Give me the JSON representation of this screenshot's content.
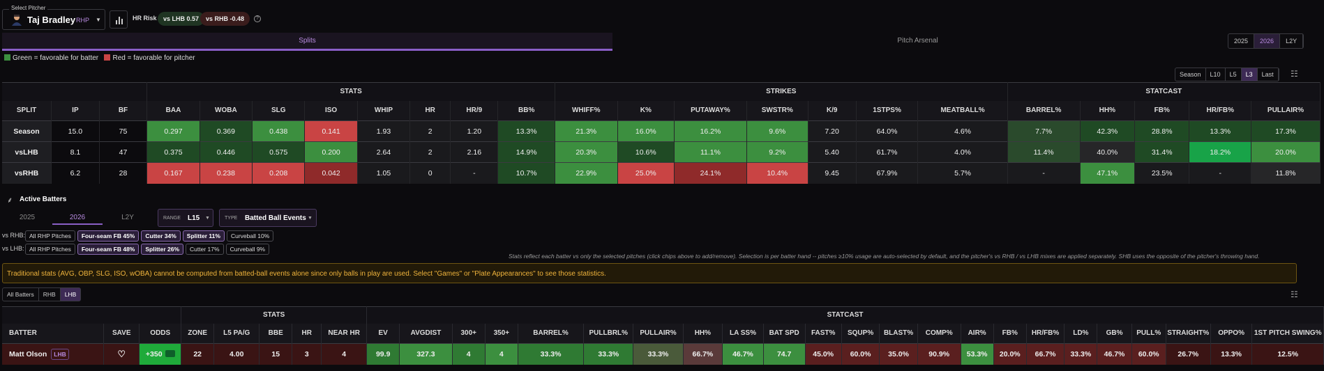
{
  "pitcher_select": {
    "label": "Select Pitcher",
    "name": "Taj Bradley",
    "hand": "RHP"
  },
  "hr_risk": {
    "label": "HR Risk",
    "vs_lhb": "vs LHB 0.57",
    "vs_rhb": "vs RHB -0.48"
  },
  "tabs": [
    "Splits",
    "Pitch Arsenal"
  ],
  "year_tabs": [
    "2025",
    "2026",
    "L2Y"
  ],
  "legend": {
    "green": "Green = favorable for batter",
    "red": "Red = favorable for pitcher"
  },
  "range_buttons": [
    "Season",
    "L10",
    "L5",
    "L3",
    "Last"
  ],
  "colors": {
    "accent": "#8a5fc7",
    "green": "#3c8f3f",
    "red": "#c94444"
  },
  "splits": {
    "groups": [
      "STATS",
      "STRIKES",
      "STATCAST"
    ],
    "columns": [
      "SPLIT",
      "IP",
      "BF",
      "BAA",
      "WOBA",
      "SLG",
      "ISO",
      "WHIP",
      "HR",
      "HR/9",
      "BB%",
      "WHIFF%",
      "K%",
      "PUTAWAY%",
      "SWSTR%",
      "K/9",
      "1STPS%",
      "MEATBALL%",
      "BARREL%",
      "HH%",
      "FB%",
      "HR/FB%",
      "PULLAIR%"
    ],
    "rows": [
      [
        "Season",
        "15.0",
        "75",
        "0.297",
        "0.369",
        "0.438",
        "0.141",
        "1.93",
        "2",
        "1.20",
        "13.3%",
        "21.3%",
        "16.0%",
        "16.2%",
        "9.6%",
        "7.20",
        "64.0%",
        "4.6%",
        "7.7%",
        "42.3%",
        "28.8%",
        "13.3%",
        "17.3%"
      ],
      [
        "vsLHB",
        "8.1",
        "47",
        "0.375",
        "0.446",
        "0.575",
        "0.200",
        "2.64",
        "2",
        "2.16",
        "14.9%",
        "20.3%",
        "10.6%",
        "11.1%",
        "9.2%",
        "5.40",
        "61.7%",
        "4.0%",
        "11.4%",
        "40.0%",
        "31.4%",
        "18.2%",
        "20.0%"
      ],
      [
        "vsRHB",
        "6.2",
        "28",
        "0.167",
        "0.238",
        "0.208",
        "0.042",
        "1.05",
        "0",
        "-",
        "10.7%",
        "22.9%",
        "25.0%",
        "24.1%",
        "10.4%",
        "9.45",
        "67.9%",
        "5.7%",
        "-",
        "47.1%",
        "23.5%",
        "-",
        "11.8%"
      ]
    ]
  },
  "active_batters": {
    "title": "Active Batters",
    "years": [
      "2025",
      "2026",
      "L2Y"
    ],
    "range_label": "RANGE",
    "range_value": "L15",
    "type_label": "TYPE",
    "type_value": "Batted Ball Events",
    "vs_rhb_label": "vs RHB:",
    "vs_lhb_label": "vs LHB:",
    "rhb_chips": [
      "All RHP Pitches",
      "Four-seam FB 45%",
      "Cutter 34%",
      "Splitter 11%",
      "Curveball 10%"
    ],
    "lhb_chips": [
      "All RHP Pitches",
      "Four-seam FB 48%",
      "Splitter 26%",
      "Cutter 17%",
      "Curveball 9%"
    ],
    "note": "Stats reflect each batter vs only the selected pitches (click chips above to add/remove). Selection is per batter hand -- pitches ≥10% usage are auto-selected by default, and the pitcher's vs RHB / vs LHB mixes are applied separately. SHB uses the opposite of the pitcher's throwing hand.",
    "warning": "Traditional stats (AVG, OBP, SLG, ISO, wOBA) cannot be computed from batted-ball events alone since only balls in play are used. Select \"Games\" or \"Plate Appearances\" to see those statistics.",
    "filters": [
      "All Batters",
      "RHB",
      "LHB"
    ]
  },
  "batters": {
    "groups": [
      "STATS",
      "STATCAST"
    ],
    "columns": [
      "BATTER",
      "SAVE",
      "ODDS",
      "ZONE",
      "L5 PA/G",
      "BBE",
      "HR",
      "NEAR HR",
      "EV",
      "AVGDIST",
      "300+",
      "350+",
      "BARREL%",
      "PULLBRL%",
      "PULLAIR%",
      "HH%",
      "LA SS%",
      "BAT SPD",
      "FAST%",
      "SQUP%",
      "BLAST%",
      "COMP%",
      "AIR%",
      "FB%",
      "HR/FB%",
      "LD%",
      "GB%",
      "PULL%",
      "STRAIGHT%",
      "OPPO%",
      "1ST PITCH SWING%"
    ],
    "rows": [
      {
        "name": "Matt Olson",
        "hand": "LHB",
        "odds": "+350",
        "zone": "22",
        "values": [
          "4.00",
          "15",
          "3",
          "4",
          "99.9",
          "327.3",
          "4",
          "4",
          "33.3%",
          "33.3%",
          "33.3%",
          "66.7%",
          "46.7%",
          "74.7",
          "45.0%",
          "60.0%",
          "35.0%",
          "90.9%",
          "53.3%",
          "20.0%",
          "66.7%",
          "33.3%",
          "46.7%",
          "60.0%",
          "26.7%",
          "13.3%",
          "12.5%"
        ]
      }
    ]
  }
}
